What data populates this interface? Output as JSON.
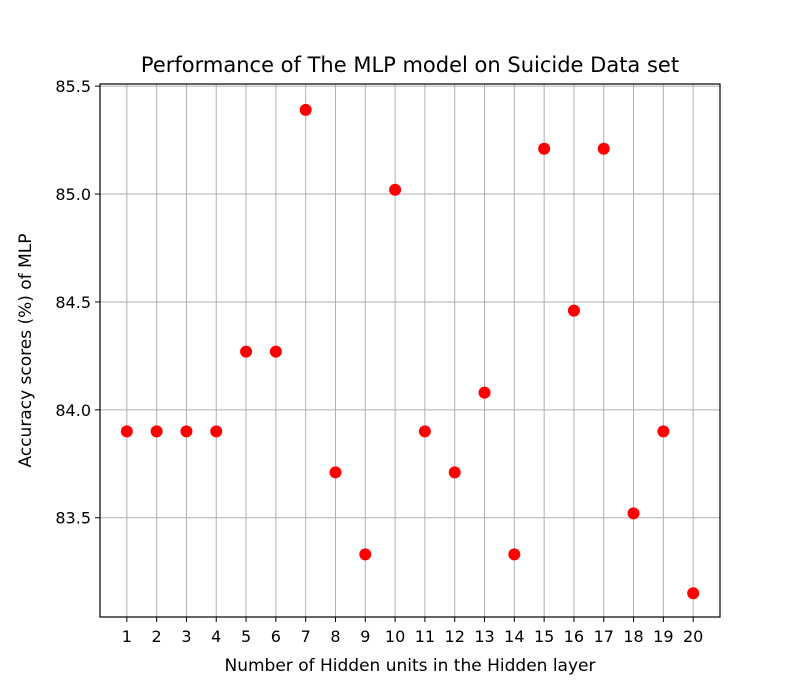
{
  "chart_data": {
    "type": "scatter",
    "title": "Performance of The MLP model on Suicide Data set",
    "xlabel": "Number of Hidden units in the Hidden layer",
    "ylabel": "Accuracy scores (%) of MLP",
    "x": [
      1,
      2,
      3,
      4,
      5,
      6,
      7,
      8,
      9,
      10,
      11,
      12,
      13,
      14,
      15,
      16,
      17,
      18,
      19,
      20
    ],
    "y": [
      83.9,
      83.9,
      83.9,
      83.9,
      84.27,
      84.27,
      85.39,
      83.71,
      83.33,
      85.02,
      83.9,
      83.71,
      84.08,
      83.33,
      85.21,
      84.46,
      85.21,
      83.52,
      83.9,
      83.15
    ],
    "xticks": [
      "1",
      "2",
      "3",
      "4",
      "5",
      "6",
      "7",
      "8",
      "9",
      "10",
      "11",
      "12",
      "13",
      "14",
      "15",
      "16",
      "17",
      "18",
      "19",
      "20"
    ],
    "yticks": [
      "83.5",
      "84.0",
      "84.5",
      "85.0",
      "85.5"
    ],
    "ytick_values": [
      83.5,
      84.0,
      84.5,
      85.0,
      85.5
    ],
    "xlim": [
      0.1,
      20.9
    ],
    "ylim": [
      83.04,
      85.51
    ],
    "grid": true,
    "marker_color": "#ff0000"
  }
}
